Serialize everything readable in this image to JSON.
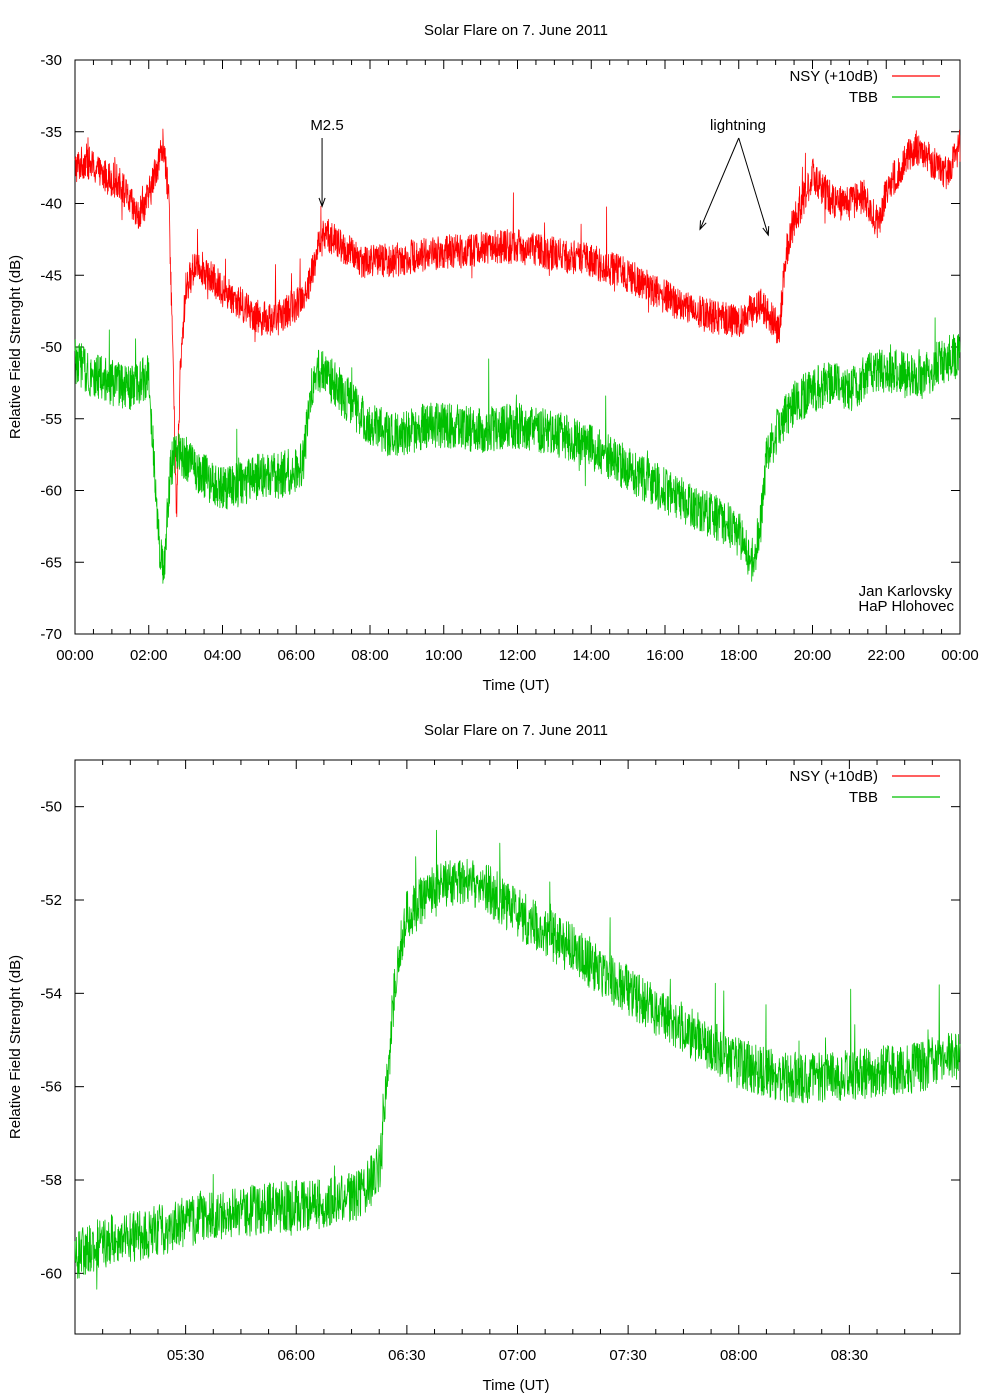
{
  "chart_data": [
    {
      "type": "line",
      "title": "Solar Flare on 7. June 2011",
      "xlabel": "Time (UT)",
      "ylabel": "Relative Field Strenght (dB)",
      "xlim": [
        0,
        24
      ],
      "ylim": [
        -70,
        -30
      ],
      "xticks": [
        0,
        2,
        4,
        6,
        8,
        10,
        12,
        14,
        16,
        18,
        20,
        22,
        24
      ],
      "xtick_labels": [
        "00:00",
        "02:00",
        "04:00",
        "06:00",
        "08:00",
        "10:00",
        "12:00",
        "14:00",
        "16:00",
        "18:00",
        "20:00",
        "22:00",
        "00:00"
      ],
      "yticks": [
        -70,
        -65,
        -60,
        -55,
        -50,
        -45,
        -40,
        -35,
        -30
      ],
      "ytick_labels": [
        "-70",
        "-65",
        "-60",
        "-55",
        "-50",
        "-45",
        "-40",
        "-35",
        "-30"
      ],
      "legend_position": "top-right",
      "series": [
        {
          "name": "NSY (+10dB)",
          "color": "#ff0000",
          "noise_db": 1.2,
          "x": [
            0,
            0.3,
            0.7,
            1.2,
            1.7,
            2.0,
            2.2,
            2.4,
            2.55,
            2.65,
            2.75,
            2.85,
            3.0,
            3.3,
            3.6,
            4.0,
            4.5,
            5.0,
            5.5,
            6.0,
            6.3,
            6.6,
            6.8,
            7.2,
            7.8,
            8.5,
            9.5,
            10.5,
            11.5,
            12.0,
            13.0,
            14.0,
            15.0,
            16.0,
            16.8,
            17.5,
            18.0,
            18.6,
            18.9,
            19.1,
            19.25,
            19.4,
            19.7,
            20.0,
            20.3,
            20.6,
            21.0,
            21.4,
            21.8,
            22.0,
            22.4,
            22.8,
            23.2,
            23.6,
            24.0
          ],
          "y": [
            -37.5,
            -37,
            -38,
            -38.5,
            -41,
            -39.5,
            -37.5,
            -36,
            -40,
            -50,
            -62,
            -52,
            -46,
            -44,
            -45,
            -46,
            -47,
            -48,
            -48,
            -47,
            -46,
            -43,
            -42,
            -43,
            -44,
            -44,
            -43.5,
            -43.3,
            -43,
            -43,
            -43.5,
            -44,
            -45,
            -46.5,
            -47.5,
            -48,
            -48.2,
            -47,
            -48,
            -49,
            -44,
            -42,
            -40,
            -38,
            -39,
            -40,
            -40,
            -39.5,
            -41.5,
            -39,
            -37.5,
            -36,
            -37,
            -38,
            -36
          ]
        },
        {
          "name": "TBB",
          "color": "#00c000",
          "noise_db": 1.6,
          "x": [
            0,
            0.5,
            1.0,
            1.5,
            2.0,
            2.15,
            2.3,
            2.4,
            2.5,
            2.6,
            2.75,
            2.9,
            3.1,
            3.5,
            4.0,
            4.5,
            5.0,
            5.5,
            6.0,
            6.2,
            6.35,
            6.5,
            6.7,
            7.0,
            7.5,
            8.0,
            8.5,
            9.0,
            9.5,
            10.0,
            11.0,
            12.0,
            13.0,
            14.0,
            15.0,
            16.0,
            17.0,
            17.5,
            18.0,
            18.2,
            18.4,
            18.6,
            18.75,
            19.0,
            19.5,
            20.0,
            20.5,
            21.0,
            21.5,
            22.0,
            22.5,
            23.0,
            23.5,
            24.0
          ],
          "y": [
            -51,
            -52,
            -52.5,
            -53,
            -52,
            -58,
            -64,
            -66,
            -62,
            -58.5,
            -57,
            -57.5,
            -58,
            -59,
            -60,
            -59.5,
            -59,
            -59,
            -58.5,
            -58,
            -54,
            -52,
            -51.5,
            -52.5,
            -54,
            -55.5,
            -56,
            -56,
            -55.5,
            -55.5,
            -55.8,
            -55.5,
            -56,
            -57,
            -58.5,
            -60,
            -61.5,
            -62,
            -63,
            -64,
            -65,
            -62,
            -58,
            -56,
            -54,
            -53,
            -52.5,
            -53,
            -52,
            -51.5,
            -52,
            -52,
            -51,
            -50.5
          ]
        }
      ],
      "annotations": [
        {
          "text": "M2.5",
          "x": 6.7,
          "y": -35,
          "arrow_to": [
            [
              6.7,
              -40.2
            ]
          ]
        },
        {
          "text": "lightning",
          "x": 18.0,
          "y": -35,
          "arrow_to": [
            [
              16.95,
              -41.8
            ],
            [
              18.8,
              -42.2
            ]
          ]
        }
      ],
      "credit": [
        "Jan Karlovsky",
        "HaP Hlohovec"
      ]
    },
    {
      "type": "line",
      "title": "Solar Flare on 7. June 2011",
      "xlabel": "Time (UT)",
      "ylabel": "Relative Field Strenght (dB)",
      "xlim": [
        5.0,
        9.0
      ],
      "ylim": [
        -61.3,
        -49.0
      ],
      "xticks": [
        5.5,
        6.0,
        6.5,
        7.0,
        7.5,
        8.0,
        8.5
      ],
      "xtick_labels": [
        "05:30",
        "06:00",
        "06:30",
        "07:00",
        "07:30",
        "08:00",
        "08:30"
      ],
      "yticks": [
        -60,
        -58,
        -56,
        -54,
        -52,
        -50
      ],
      "ytick_labels": [
        "-60",
        "-58",
        "-56",
        "-54",
        "-52",
        "-50"
      ],
      "legend_position": "top-right",
      "series": [
        {
          "name": "NSY (+10dB)",
          "color": "#ff0000",
          "noise_db": 0,
          "x": [],
          "y": []
        },
        {
          "name": "TBB",
          "color": "#00c000",
          "noise_db": 0.55,
          "x": [
            5.0,
            5.15,
            5.3,
            5.5,
            5.7,
            5.9,
            6.1,
            6.3,
            6.38,
            6.42,
            6.46,
            6.5,
            6.6,
            6.7,
            6.8,
            6.9,
            7.0,
            7.2,
            7.4,
            7.6,
            7.8,
            8.0,
            8.2,
            8.4,
            8.6,
            8.8,
            9.0
          ],
          "y": [
            -59.6,
            -59.3,
            -59.2,
            -58.9,
            -58.7,
            -58.6,
            -58.5,
            -58.3,
            -57.7,
            -55.2,
            -53.2,
            -52.3,
            -51.9,
            -51.6,
            -51.6,
            -51.9,
            -52.3,
            -52.9,
            -53.6,
            -54.3,
            -54.9,
            -55.5,
            -55.8,
            -55.8,
            -55.7,
            -55.6,
            -55.3
          ]
        }
      ],
      "annotations": [],
      "credit": []
    }
  ]
}
